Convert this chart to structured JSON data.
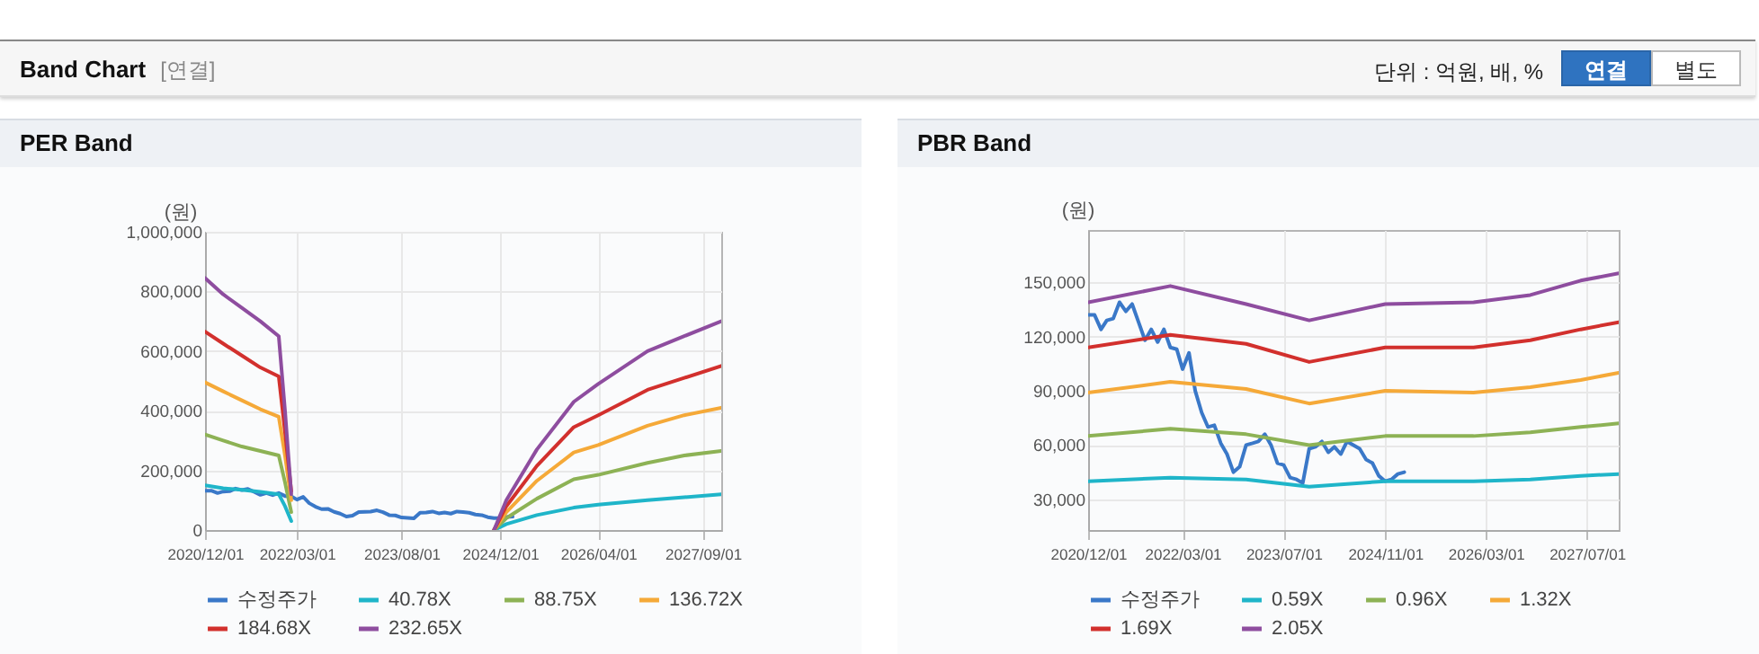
{
  "chart_data": [
    {
      "type": "other",
      "title": "Band Chart",
      "annotations": [
        "[연결]",
        "단위 : 억원, 배, %",
        "연결",
        "별도"
      ]
    },
    {
      "type": "line",
      "title": "PER Band",
      "ylabel": "(원)",
      "grid": true,
      "legend": "bottom",
      "xlim": [
        "2020-12-01",
        "2027-12-01"
      ],
      "xticks": [
        {
          "value": "2020-12-01",
          "label": "2020/12/01"
        },
        {
          "value": "2022-03-01",
          "label": "2022/03/01"
        },
        {
          "value": "2023-08-01",
          "label": "2023/08/01"
        },
        {
          "value": "2024-12-01",
          "label": "2024/12/01"
        },
        {
          "value": "2026-04-01",
          "label": "2026/04/01"
        },
        {
          "value": "2027-09-01",
          "label": "2027/09/01"
        }
      ],
      "ylim": [
        0,
        1000000
      ],
      "yticks": [
        0,
        {
          "value": 200000,
          "label": "200,000"
        },
        {
          "value": 400000,
          "label": "400,000"
        },
        {
          "value": 600000,
          "label": "600,000"
        },
        {
          "value": 800000,
          "label": "800,000"
        },
        {
          "value": 1000000,
          "label": "1,000,000"
        }
      ],
      "series": [
        {
          "name": "수정주가",
          "color": "#3a78c8",
          "x": [
            "2020-12",
            "2021-01",
            "2021-02",
            "2021-03",
            "2021-04",
            "2021-05",
            "2021-06",
            "2021-07",
            "2021-08",
            "2021-09",
            "2021-10",
            "2021-11",
            "2021-12",
            "2022-01",
            "2022-02",
            "2022-03",
            "2022-04",
            "2022-05",
            "2022-06",
            "2022-07",
            "2022-08",
            "2022-09",
            "2022-10",
            "2022-11",
            "2022-12",
            "2023-01",
            "2023-02",
            "2023-03",
            "2023-04",
            "2023-05",
            "2023-06",
            "2023-07",
            "2023-08",
            "2023-09",
            "2023-10",
            "2023-11",
            "2023-12",
            "2024-01",
            "2024-02",
            "2024-03",
            "2024-04",
            "2024-05",
            "2024-06",
            "2024-07",
            "2024-08",
            "2024-09",
            "2024-10",
            "2024-11",
            "2024-12",
            "2025-01",
            "2025-02"
          ],
          "values": [
            132000,
            132000,
            124000,
            129000,
            130000,
            139000,
            134000,
            138000,
            128000,
            118000,
            124000,
            117000,
            124000,
            114000,
            113000,
            102000,
            111000,
            90000,
            78000,
            70000,
            71000,
            61000,
            55000,
            45000,
            48000,
            60000,
            61000,
            62000,
            66000,
            60000,
            50000,
            49000,
            42000,
            41000,
            39000,
            58000,
            59000,
            62000,
            56000,
            59000,
            55000,
            62000,
            60000,
            58000,
            52000,
            50000,
            43000,
            40000,
            41000,
            44000,
            45000
          ]
        },
        {
          "name": "40.78X",
          "color": "#1fb5c9",
          "x": [
            "2020-12",
            "2021-03",
            "2021-06",
            "2021-09",
            "2021-12",
            "2022-01",
            "2022-02",
            "2022-06",
            "2024-11",
            "2025-01",
            "2025-06",
            "2025-12",
            "2026-04",
            "2026-12",
            "2027-06",
            "2027-12"
          ],
          "values": [
            150000,
            140000,
            135000,
            128000,
            120000,
            80000,
            30000,
            null,
            0,
            20000,
            50000,
            75000,
            85000,
            100000,
            110000,
            120000
          ]
        },
        {
          "name": "88.75X",
          "color": "#8db255",
          "x": [
            "2020-12",
            "2021-03",
            "2021-06",
            "2021-09",
            "2021-12",
            "2022-01",
            "2022-02",
            "2022-06",
            "2024-11",
            "2025-01",
            "2025-06",
            "2025-12",
            "2026-04",
            "2026-12",
            "2027-06",
            "2027-12"
          ],
          "values": [
            320000,
            300000,
            280000,
            265000,
            250000,
            160000,
            60000,
            null,
            0,
            40000,
            105000,
            170000,
            185000,
            225000,
            250000,
            265000
          ]
        },
        {
          "name": "136.72X",
          "color": "#f5a938",
          "x": [
            "2020-12",
            "2021-03",
            "2021-06",
            "2021-09",
            "2021-12",
            "2022-01",
            "2022-02",
            "2022-06",
            "2024-11",
            "2025-01",
            "2025-06",
            "2025-12",
            "2026-04",
            "2026-12",
            "2027-06",
            "2027-12"
          ],
          "values": [
            495000,
            465000,
            435000,
            405000,
            380000,
            250000,
            100000,
            null,
            0,
            60000,
            165000,
            260000,
            285000,
            350000,
            385000,
            410000
          ]
        },
        {
          "name": "184.68X",
          "color": "#d2302d",
          "x": [
            "2020-12",
            "2021-03",
            "2021-06",
            "2021-09",
            "2021-12",
            "2022-01",
            "2022-02",
            "2022-06",
            "2024-11",
            "2025-01",
            "2025-06",
            "2025-12",
            "2026-04",
            "2026-12",
            "2027-06",
            "2027-12"
          ],
          "values": [
            665000,
            625000,
            585000,
            545000,
            515000,
            330000,
            130000,
            null,
            0,
            80000,
            215000,
            345000,
            385000,
            470000,
            510000,
            550000
          ]
        },
        {
          "name": "232.65X",
          "color": "#8e4d9f",
          "x": [
            "2020-12",
            "2021-03",
            "2021-06",
            "2021-09",
            "2021-12",
            "2022-01",
            "2022-02",
            "2022-06",
            "2024-11",
            "2025-01",
            "2025-06",
            "2025-12",
            "2026-04",
            "2026-12",
            "2027-06",
            "2027-12"
          ],
          "values": [
            845000,
            790000,
            745000,
            700000,
            650000,
            400000,
            120000,
            null,
            0,
            100000,
            270000,
            430000,
            490000,
            600000,
            650000,
            700000
          ]
        }
      ]
    },
    {
      "type": "line",
      "title": "PBR Band",
      "ylabel": "(원)",
      "grid": true,
      "legend": "bottom",
      "xlim": [
        "2020-12-01",
        "2027-12-01"
      ],
      "xticks": [
        {
          "value": "2020-12-01",
          "label": "2020/12/01"
        },
        {
          "value": "2022-03-01",
          "label": "2022/03/01"
        },
        {
          "value": "2023-07-01",
          "label": "2023/07/01"
        },
        {
          "value": "2024-11-01",
          "label": "2024/11/01"
        },
        {
          "value": "2026-03-01",
          "label": "2026/03/01"
        },
        {
          "value": "2027-07-01",
          "label": "2027/07/01"
        }
      ],
      "ylim": [
        13000,
        179000
      ],
      "yticks": [
        {
          "value": 30000,
          "label": "30,000"
        },
        {
          "value": 60000,
          "label": "60,000"
        },
        {
          "value": 90000,
          "label": "90,000"
        },
        {
          "value": 120000,
          "label": "120,000"
        },
        {
          "value": 150000,
          "label": "150,000"
        }
      ],
      "series": [
        {
          "name": "수정주가",
          "color": "#3a78c8",
          "x": [
            "2020-12",
            "2021-01",
            "2021-02",
            "2021-03",
            "2021-04",
            "2021-05",
            "2021-06",
            "2021-07",
            "2021-08",
            "2021-09",
            "2021-10",
            "2021-11",
            "2021-12",
            "2022-01",
            "2022-02",
            "2022-03",
            "2022-04",
            "2022-05",
            "2022-06",
            "2022-07",
            "2022-08",
            "2022-09",
            "2022-10",
            "2022-11",
            "2022-12",
            "2023-01",
            "2023-02",
            "2023-03",
            "2023-04",
            "2023-05",
            "2023-06",
            "2023-07",
            "2023-08",
            "2023-09",
            "2023-10",
            "2023-11",
            "2023-12",
            "2024-01",
            "2024-02",
            "2024-03",
            "2024-04",
            "2024-05",
            "2024-06",
            "2024-07",
            "2024-08",
            "2024-09",
            "2024-10",
            "2024-11",
            "2024-12",
            "2025-01",
            "2025-02"
          ],
          "values": [
            132000,
            132000,
            124000,
            129000,
            130000,
            139000,
            134000,
            138000,
            128000,
            118000,
            124000,
            117000,
            124000,
            114000,
            113000,
            102000,
            111000,
            90000,
            78000,
            70000,
            71000,
            61000,
            55000,
            45000,
            48000,
            60000,
            61000,
            62000,
            66000,
            60000,
            50000,
            49000,
            42000,
            41000,
            39000,
            58000,
            59000,
            62000,
            56000,
            59000,
            55000,
            62000,
            60000,
            58000,
            52000,
            50000,
            43000,
            40000,
            41000,
            44000,
            45000
          ]
        },
        {
          "name": "0.59X",
          "color": "#1fb5c9",
          "x": [
            "2020-12",
            "2022-01",
            "2023-01",
            "2023-11",
            "2024-11",
            "2026-01",
            "2026-10",
            "2027-06",
            "2027-12"
          ],
          "values": [
            40000,
            42000,
            41000,
            37000,
            40000,
            40000,
            41000,
            43000,
            44000
          ]
        },
        {
          "name": "0.96X",
          "color": "#8db255",
          "x": [
            "2020-12",
            "2022-01",
            "2023-01",
            "2023-11",
            "2024-11",
            "2026-01",
            "2026-10",
            "2027-06",
            "2027-12"
          ],
          "values": [
            65000,
            69000,
            66000,
            60000,
            65000,
            65000,
            67000,
            70000,
            72000
          ]
        },
        {
          "name": "1.32X",
          "color": "#f5a938",
          "x": [
            "2020-12",
            "2022-01",
            "2023-01",
            "2023-11",
            "2024-11",
            "2026-01",
            "2026-10",
            "2027-06",
            "2027-12"
          ],
          "values": [
            89000,
            95000,
            91000,
            83000,
            90000,
            89000,
            92000,
            96000,
            100000
          ]
        },
        {
          "name": "1.69X",
          "color": "#d2302d",
          "x": [
            "2020-12",
            "2022-01",
            "2023-01",
            "2023-11",
            "2024-11",
            "2026-01",
            "2026-10",
            "2027-06",
            "2027-12"
          ],
          "values": [
            114000,
            121000,
            116000,
            106000,
            114000,
            114000,
            118000,
            124000,
            128000
          ]
        },
        {
          "name": "2.05X",
          "color": "#8e4d9f",
          "x": [
            "2020-12",
            "2022-01",
            "2023-01",
            "2023-11",
            "2024-11",
            "2026-01",
            "2026-10",
            "2027-06",
            "2027-12"
          ],
          "values": [
            139000,
            148000,
            138000,
            129000,
            138000,
            139000,
            143000,
            151000,
            155000
          ]
        }
      ]
    }
  ]
}
